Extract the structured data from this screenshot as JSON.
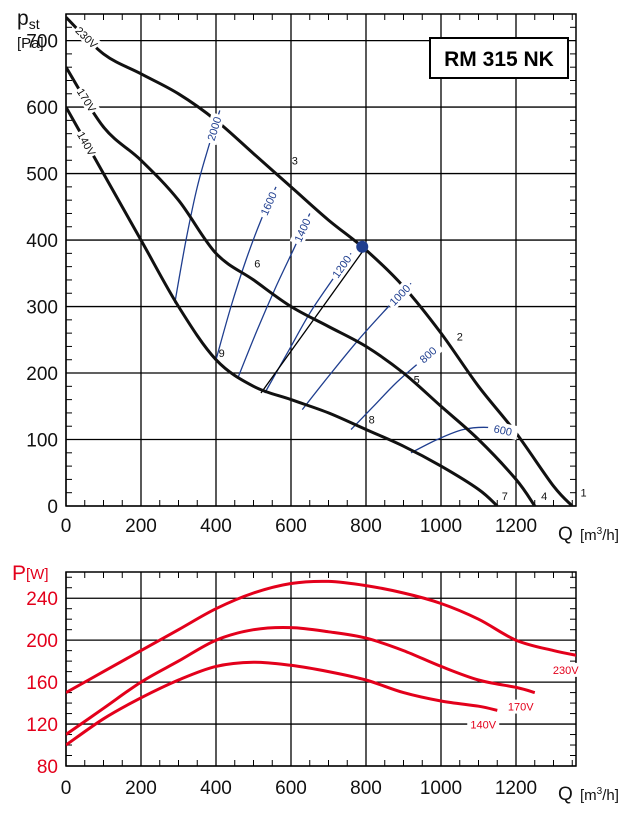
{
  "chart_data": [
    {
      "type": "line",
      "title": "RM 315 NK",
      "ylabel_main": "p",
      "ylabel_sub": "st",
      "ylabel_unit": "[Pa]",
      "xlabel": "Q",
      "xlabel_unit_pre": "[m",
      "xlabel_unit_sup": "3",
      "xlabel_unit_post": "/h]",
      "xlim": [
        0,
        1360
      ],
      "ylim": [
        0,
        740
      ],
      "xticks": [
        0,
        200,
        400,
        600,
        800,
        1000,
        1200
      ],
      "xtick_labels": [
        "0",
        "200",
        "400",
        "600",
        "800",
        "1000",
        "1200"
      ],
      "yticks": [
        0,
        100,
        200,
        300,
        400,
        500,
        600,
        700
      ],
      "ytick_labels": [
        "0",
        "100",
        "200",
        "300",
        "400",
        "500",
        "600",
        "700"
      ],
      "series": [
        {
          "name": "230V",
          "x": [
            0,
            100,
            200,
            300,
            400,
            500,
            600,
            700,
            800,
            900,
            1000,
            1100,
            1200,
            1300,
            1350
          ],
          "y": [
            735,
            680,
            650,
            620,
            580,
            530,
            480,
            430,
            385,
            330,
            260,
            180,
            110,
            30,
            0
          ]
        },
        {
          "name": "170V",
          "x": [
            0,
            100,
            200,
            300,
            400,
            500,
            600,
            700,
            800,
            900,
            1000,
            1100,
            1200,
            1250
          ],
          "y": [
            660,
            570,
            520,
            460,
            380,
            340,
            300,
            270,
            240,
            200,
            150,
            100,
            40,
            0
          ]
        },
        {
          "name": "140V",
          "x": [
            0,
            100,
            200,
            300,
            400,
            500,
            600,
            700,
            800,
            900,
            1000,
            1100,
            1150
          ],
          "y": [
            600,
            500,
            400,
            300,
            220,
            180,
            160,
            140,
            115,
            90,
            60,
            25,
            0
          ]
        }
      ],
      "rpm_lines": [
        {
          "label": "2000",
          "x": [
            290,
            320,
            350,
            380,
            410
          ],
          "y": [
            305,
            400,
            480,
            540,
            595
          ]
        },
        {
          "label": "1600",
          "x": [
            400,
            440,
            480,
            520,
            560
          ],
          "y": [
            220,
            300,
            370,
            430,
            480
          ]
        },
        {
          "label": "1400",
          "x": [
            460,
            510,
            560,
            610,
            650
          ],
          "y": [
            195,
            265,
            330,
            390,
            440
          ]
        },
        {
          "label": "1200",
          "x": [
            530,
            590,
            650,
            710,
            760
          ],
          "y": [
            170,
            230,
            290,
            340,
            380
          ]
        },
        {
          "label": "1000",
          "x": [
            630,
            700,
            780,
            860,
            920
          ],
          "y": [
            145,
            195,
            250,
            300,
            335
          ]
        },
        {
          "label": "800",
          "x": [
            760,
            820,
            880,
            940,
            990
          ],
          "y": [
            115,
            150,
            185,
            215,
            240
          ]
        },
        {
          "label": "600",
          "x": [
            920,
            990,
            1060,
            1130,
            1200
          ],
          "y": [
            80,
            100,
            115,
            118,
            110
          ]
        }
      ],
      "extra_line": {
        "x": [
          520,
          800
        ],
        "y": [
          170,
          390
        ]
      },
      "duty_point": {
        "x": 790,
        "y": 390
      },
      "point_labels": [
        {
          "label": "1",
          "x": 1380,
          "y": 20
        },
        {
          "label": "2",
          "x": 1050,
          "y": 255
        },
        {
          "label": "3",
          "x": 610,
          "y": 520
        },
        {
          "label": "4",
          "x": 1275,
          "y": 15
        },
        {
          "label": "5",
          "x": 935,
          "y": 190
        },
        {
          "label": "6",
          "x": 510,
          "y": 365
        },
        {
          "label": "7",
          "x": 1170,
          "y": 15
        },
        {
          "label": "8",
          "x": 815,
          "y": 130
        },
        {
          "label": "9",
          "x": 415,
          "y": 230
        }
      ]
    },
    {
      "type": "line",
      "ylabel": "P",
      "ylabel_unit": "[W]",
      "xlabel": "Q",
      "xlabel_unit_pre": "[m",
      "xlabel_unit_sup": "3",
      "xlabel_unit_post": "/h]",
      "xlim": [
        0,
        1360
      ],
      "ylim": [
        80,
        265
      ],
      "xticks": [
        0,
        200,
        400,
        600,
        800,
        1000,
        1200
      ],
      "xtick_labels": [
        "0",
        "200",
        "400",
        "600",
        "800",
        "1000",
        "1200"
      ],
      "yticks": [
        80,
        120,
        160,
        200,
        240
      ],
      "ytick_labels": [
        "80",
        "120",
        "160",
        "200",
        "240"
      ],
      "series": [
        {
          "name": "230V",
          "x": [
            0,
            100,
            200,
            300,
            400,
            500,
            600,
            700,
            800,
            900,
            1000,
            1100,
            1200,
            1300,
            1370
          ],
          "y": [
            150,
            170,
            190,
            210,
            230,
            245,
            254,
            256,
            252,
            245,
            235,
            220,
            200,
            190,
            185
          ]
        },
        {
          "name": "170V",
          "x": [
            0,
            100,
            200,
            300,
            400,
            500,
            600,
            700,
            800,
            900,
            1000,
            1100,
            1200,
            1250
          ],
          "y": [
            110,
            135,
            160,
            180,
            200,
            210,
            212,
            208,
            202,
            190,
            175,
            162,
            155,
            150
          ]
        },
        {
          "name": "140V",
          "x": [
            0,
            100,
            200,
            300,
            400,
            500,
            600,
            700,
            800,
            900,
            1000,
            1100,
            1150
          ],
          "y": [
            100,
            125,
            145,
            162,
            175,
            179,
            176,
            170,
            162,
            150,
            142,
            137,
            133
          ]
        }
      ]
    }
  ]
}
